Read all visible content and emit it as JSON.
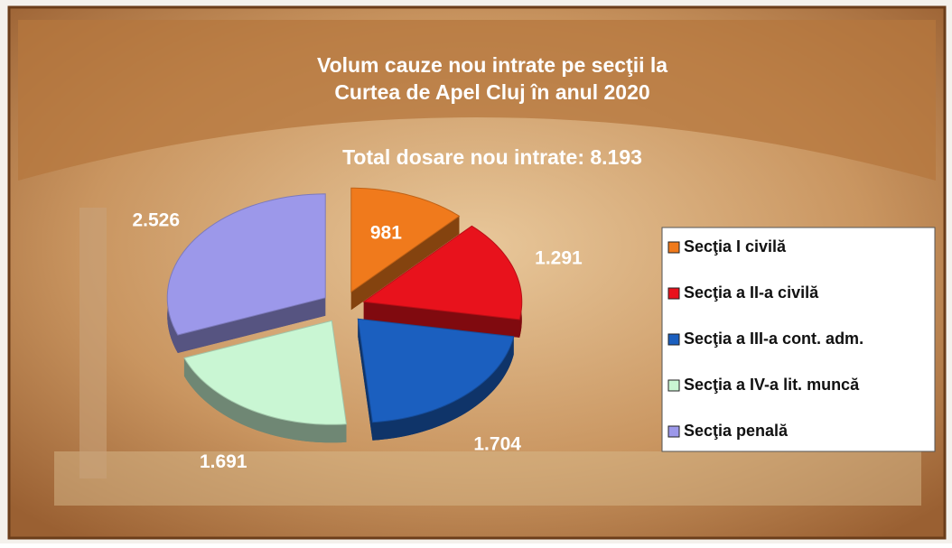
{
  "chart_data": {
    "type": "pie",
    "title": [
      "Volum cauze nou intrate pe secţii la",
      "Curtea de Apel Cluj în anul 2020"
    ],
    "subtitle": "Total dosare nou intrate: 8.193",
    "categories": [
      "Secţia I civilă",
      "Secţia a II-a civilă",
      "Secţia a III-a cont. adm.",
      "Secţia a IV-a lit. muncă",
      "Secţia penală"
    ],
    "values": [
      981,
      1291,
      1704,
      1691,
      2526
    ],
    "value_labels": [
      "981",
      "1.291",
      "1.704",
      "1.691",
      "2.526"
    ],
    "colors": [
      "#f07a1c",
      "#e8121c",
      "#1b5fbf",
      "#c9f6d3",
      "#9c98ea"
    ],
    "legend": "right"
  }
}
